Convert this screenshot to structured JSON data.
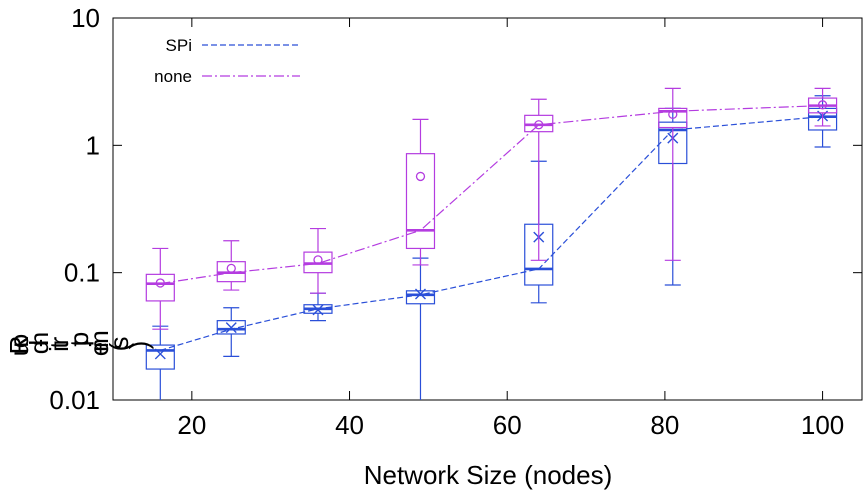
{
  "chart_data": {
    "type": "box",
    "xlabel": "Network Size (nodes)",
    "ylabel": "Round-trip time (s)",
    "x_ticks": [
      "20",
      "40",
      "60",
      "80",
      "100"
    ],
    "y_ticks": [
      "0.01",
      "0.1",
      "1",
      "10"
    ],
    "xlim": [
      10,
      105
    ],
    "ylim": [
      0.01,
      10
    ],
    "y_scale": "log",
    "grid": false,
    "legend_position": "top-left",
    "series": [
      {
        "name": "SPi",
        "color": "#2a4fd8",
        "marker": "x",
        "line_style": "dashed",
        "boxes": [
          {
            "x": 16,
            "whisker_low": 0.009,
            "q1": 0.0175,
            "median": 0.0245,
            "q3": 0.027,
            "whisker_high": 0.038,
            "mean": 0.023
          },
          {
            "x": 25,
            "whisker_low": 0.022,
            "q1": 0.033,
            "median": 0.036,
            "q3": 0.042,
            "whisker_high": 0.053,
            "mean": 0.037
          },
          {
            "x": 36,
            "whisker_low": 0.042,
            "q1": 0.048,
            "median": 0.052,
            "q3": 0.056,
            "whisker_high": 0.069,
            "mean": 0.051
          },
          {
            "x": 49,
            "whisker_low": 0.009,
            "q1": 0.057,
            "median": 0.067,
            "q3": 0.072,
            "whisker_high": 0.13,
            "mean": 0.068
          },
          {
            "x": 64,
            "whisker_low": 0.058,
            "q1": 0.08,
            "median": 0.107,
            "q3": 0.24,
            "whisker_high": 0.75,
            "mean": 0.19
          },
          {
            "x": 81,
            "whisker_low": 0.08,
            "q1": 0.72,
            "median": 1.32,
            "q3": 1.52,
            "whisker_high": 1.95,
            "mean": 1.14
          },
          {
            "x": 100,
            "whisker_low": 0.97,
            "q1": 1.32,
            "median": 1.68,
            "q3": 1.95,
            "whisker_high": 2.45,
            "mean": 1.7
          }
        ]
      },
      {
        "name": "none",
        "color": "#b43ce0",
        "marker": "circle",
        "line_style": "dash-dot",
        "boxes": [
          {
            "x": 16,
            "whisker_low": 0.036,
            "q1": 0.06,
            "median": 0.082,
            "q3": 0.097,
            "whisker_high": 0.155,
            "mean": 0.083
          },
          {
            "x": 25,
            "whisker_low": 0.073,
            "q1": 0.085,
            "median": 0.1,
            "q3": 0.122,
            "whisker_high": 0.178,
            "mean": 0.108
          },
          {
            "x": 36,
            "whisker_low": 0.069,
            "q1": 0.1,
            "median": 0.118,
            "q3": 0.145,
            "whisker_high": 0.222,
            "mean": 0.126
          },
          {
            "x": 49,
            "whisker_low": 0.115,
            "q1": 0.155,
            "median": 0.215,
            "q3": 0.86,
            "whisker_high": 1.6,
            "mean": 0.57
          },
          {
            "x": 64,
            "whisker_low": 0.125,
            "q1": 1.28,
            "median": 1.45,
            "q3": 1.72,
            "whisker_high": 2.3,
            "mean": 1.45
          },
          {
            "x": 81,
            "whisker_low": 0.125,
            "q1": 1.38,
            "median": 1.85,
            "q3": 1.95,
            "whisker_high": 2.8,
            "mean": 1.75
          },
          {
            "x": 100,
            "whisker_low": 1.42,
            "q1": 1.8,
            "median": 2.05,
            "q3": 2.35,
            "whisker_high": 2.8,
            "mean": 2.08
          }
        ]
      }
    ]
  }
}
